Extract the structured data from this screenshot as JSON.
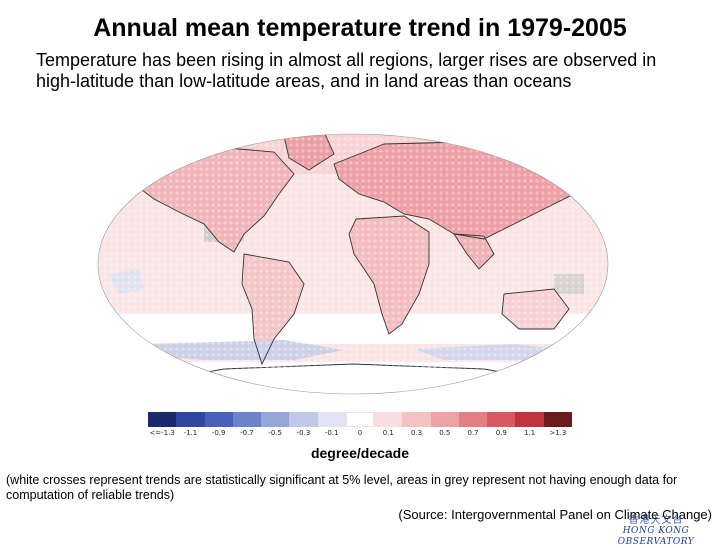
{
  "title": "Annual mean temperature trend in 1979-2005",
  "subtitle": "Temperature has been rising in almost all regions, larger rises are observed in high-latitude than low-latitude areas, and in land areas than oceans",
  "map": {
    "legend": {
      "labels": [
        "<=-1.3",
        "-1.1",
        "-0.9",
        "-0.7",
        "-0.5",
        "-0.3",
        "-0.1",
        "0",
        "0.1",
        "0.3",
        "0.5",
        "0.7",
        "0.9",
        "1.1",
        ">1.3"
      ],
      "colors": [
        "#1b2a6b",
        "#2e47a0",
        "#4762b8",
        "#6c83c9",
        "#97a6d8",
        "#bfc8e6",
        "#e0e4f2",
        "#ffffff",
        "#f8dede",
        "#f3c2c2",
        "#eda2a5",
        "#e37f84",
        "#d65a61",
        "#c2343d",
        "#6b1a1d"
      ]
    },
    "colors": {
      "ocean_warm": "#f9dcdc",
      "land_warm": "#f1b5b9",
      "land_hot": "#e6858c",
      "cool": "#c9cee6",
      "missing": "#bdbdbd",
      "coastline": "#333333"
    }
  },
  "unit": "degree/decade",
  "note": "(white crosses represent trends are statistically significant at 5% level, areas in grey represent not having enough data for computation of reliable trends)",
  "source": "(Source: Intergovernmental Panel on Climate Change)",
  "logo": {
    "zh": "香港天文台",
    "en": "HONG KONG OBSERVATORY"
  }
}
